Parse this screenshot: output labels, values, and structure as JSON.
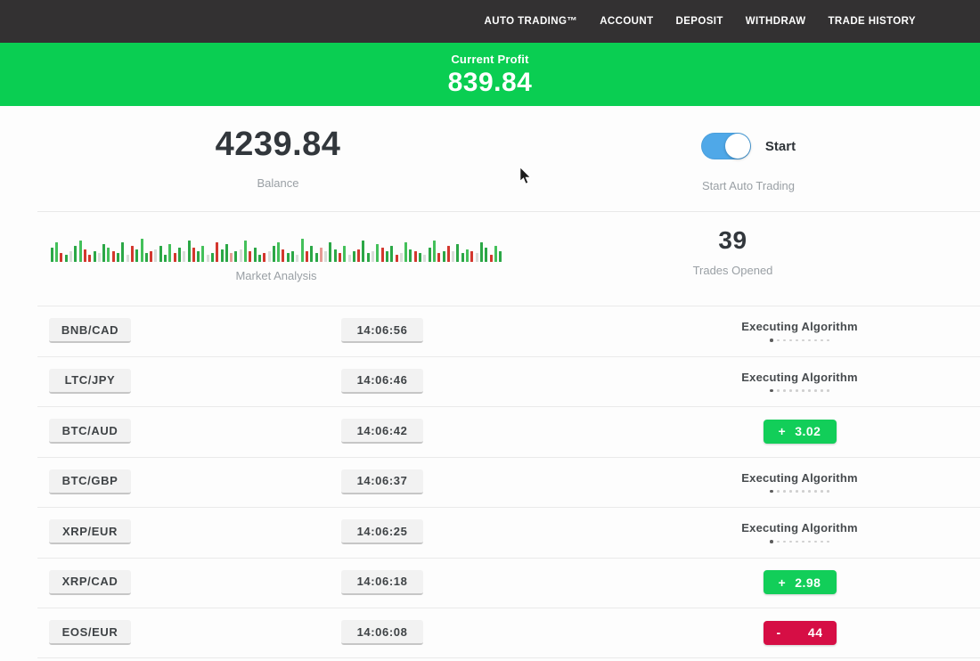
{
  "nav": {
    "items": [
      "AUTO TRADING™",
      "ACCOUNT",
      "DEPOSIT",
      "WITHDRAW",
      "TRADE HISTORY"
    ]
  },
  "banner": {
    "label": "Current Profit",
    "value": "839.84",
    "color": "#0ace52"
  },
  "summary": {
    "balance_value": "4239.84",
    "balance_label": "Balance",
    "toggle_label": "Start",
    "toggle_caption": "Start Auto Trading",
    "toggle_state": "on",
    "toggle_color": "#4fa8e8",
    "trades_value": "39",
    "trades_label": "Trades Opened",
    "market_label": "Market Analysis"
  },
  "chart_data": {
    "type": "bar",
    "title": "Market Analysis",
    "xlabel": "",
    "ylabel": "",
    "legend": false,
    "axes": false,
    "note": "decorative strip of green/red market ticker bars, encoded as colorKey+heightPx",
    "color_map": {
      "g": "#2ba746",
      "G": "#43c05a",
      "r": "#d3372e",
      "R": "#e59a94",
      "e": "#d8dcd8"
    },
    "bars": "g16,G22,r10,g8,e12,g18,G24,r14,r8,g12,e10,g20,G16,r12,g10,g22,e8,r18,g14,G26,g10,r12,e14,g18,g8,G20,r10,g16,e12,g24,r16,g12,G18,e8,g10,r22,g14,g20,R10,g12,e14,G24,r12,g16,g8,r10,e12,g18,G22,r14,g10,g12,e8,G26,r12,g18,g10,R16,e12,g22,g14,r10,G18,e8,g12,r14,g24,g10,e12,G20,r16,g12,g18,r8,e10,G22,g14,r12,g10,e8,g16,G24,r10,g12,r18,e12,g20,g10,G14,r12,e10,g22,g16,r8,G18,g12"
  },
  "statuses": {
    "executing_text": "Executing Algorithm",
    "dots_count": 10,
    "profit_color": "#12ce59",
    "loss_color": "#d60e45"
  },
  "trades": [
    {
      "pair": "BNB/CAD",
      "time": "14:06:56",
      "status": "executing"
    },
    {
      "pair": "LTC/JPY",
      "time": "14:06:46",
      "status": "executing"
    },
    {
      "pair": "BTC/AUD",
      "time": "14:06:42",
      "status": "profit",
      "sign": "+",
      "amount": "3.02"
    },
    {
      "pair": "BTC/GBP",
      "time": "14:06:37",
      "status": "executing"
    },
    {
      "pair": "XRP/EUR",
      "time": "14:06:25",
      "status": "executing"
    },
    {
      "pair": "XRP/CAD",
      "time": "14:06:18",
      "status": "profit",
      "sign": "+",
      "amount": "2.98"
    },
    {
      "pair": "EOS/EUR",
      "time": "14:06:08",
      "status": "loss",
      "sign": "-",
      "amount": "44"
    }
  ]
}
